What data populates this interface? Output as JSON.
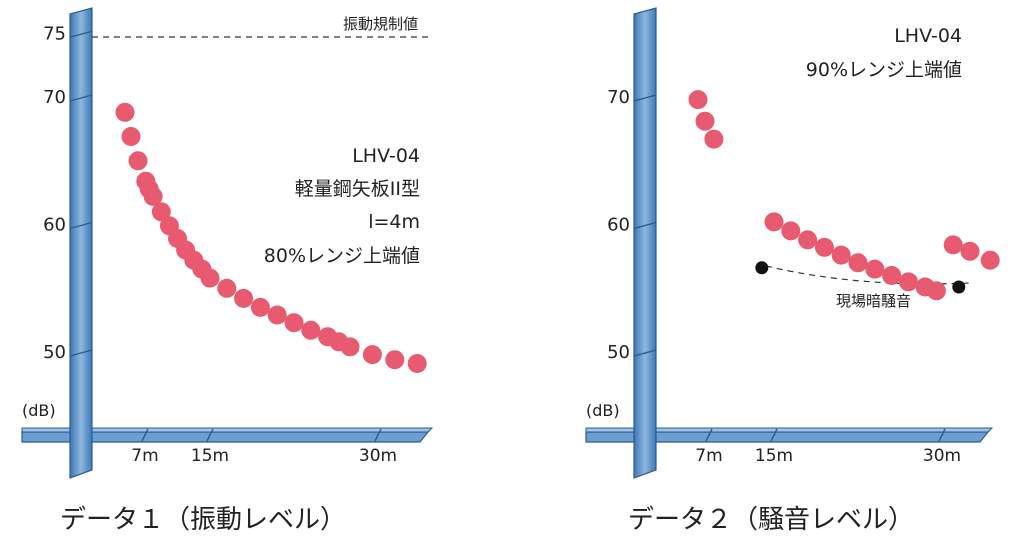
{
  "chart_data": [
    {
      "type": "scatter",
      "caption": "データ１（振動レベル）",
      "ylabel": "(dB)",
      "y_ticks": [
        "50",
        "60",
        "70",
        "75"
      ],
      "x_ticks": [
        "7m",
        "15m",
        "30m"
      ],
      "annotations": [
        "LHV-04",
        "軽量鋼矢板II型",
        "l=4m",
        "80%レンジ上端値"
      ],
      "reference_line": {
        "label": "振動規制値",
        "y": 75
      },
      "series": [
        {
          "color": "#e85a70",
          "points": [
            [
              5.0,
              68.8
            ],
            [
              5.6,
              66.9
            ],
            [
              6.3,
              65.0
            ],
            [
              7.1,
              63.4
            ],
            [
              7.5,
              62.8
            ],
            [
              8.0,
              62.2
            ],
            [
              9.0,
              61.0
            ],
            [
              10.0,
              59.9
            ],
            [
              11.0,
              58.9
            ],
            [
              12.0,
              58.0
            ],
            [
              13.0,
              57.2
            ],
            [
              14.0,
              56.5
            ],
            [
              15.0,
              55.8
            ],
            [
              16.5,
              55.0
            ],
            [
              18.0,
              54.2
            ],
            [
              19.5,
              53.5
            ],
            [
              21.0,
              52.9
            ],
            [
              22.5,
              52.3
            ],
            [
              24.0,
              51.7
            ],
            [
              25.5,
              51.2
            ],
            [
              26.5,
              50.8
            ],
            [
              27.5,
              50.4
            ],
            [
              29.5,
              49.8
            ],
            [
              31.5,
              49.4
            ],
            [
              33.5,
              49.1
            ]
          ]
        }
      ]
    },
    {
      "type": "scatter",
      "caption": "データ２（騒音レベル）",
      "ylabel": "(dB)",
      "y_ticks": [
        "50",
        "60",
        "70"
      ],
      "x_ticks": [
        "7m",
        "15m",
        "30m"
      ],
      "annotations": [
        "LHV-04",
        "90%レンジ上端値"
      ],
      "background_label": "現場暗騒音",
      "series": [
        {
          "color": "#e85a70",
          "points": [
            [
              5.9,
              69.8
            ],
            [
              6.6,
              68.1
            ],
            [
              7.6,
              66.7
            ],
            [
              15.0,
              60.2
            ],
            [
              16.5,
              59.5
            ],
            [
              18.0,
              58.8
            ],
            [
              19.5,
              58.2
            ],
            [
              21.0,
              57.6
            ],
            [
              22.5,
              57.0
            ],
            [
              24.0,
              56.5
            ],
            [
              25.5,
              56.0
            ],
            [
              27.0,
              55.5
            ],
            [
              28.5,
              55.1
            ],
            [
              29.5,
              54.8
            ],
            [
              31.0,
              58.4
            ],
            [
              32.5,
              57.9
            ],
            [
              34.3,
              57.2
            ]
          ]
        },
        {
          "color": "#111111",
          "points": [
            [
              13.5,
              56.6
            ],
            [
              31.5,
              55.1
            ]
          ]
        }
      ]
    }
  ]
}
